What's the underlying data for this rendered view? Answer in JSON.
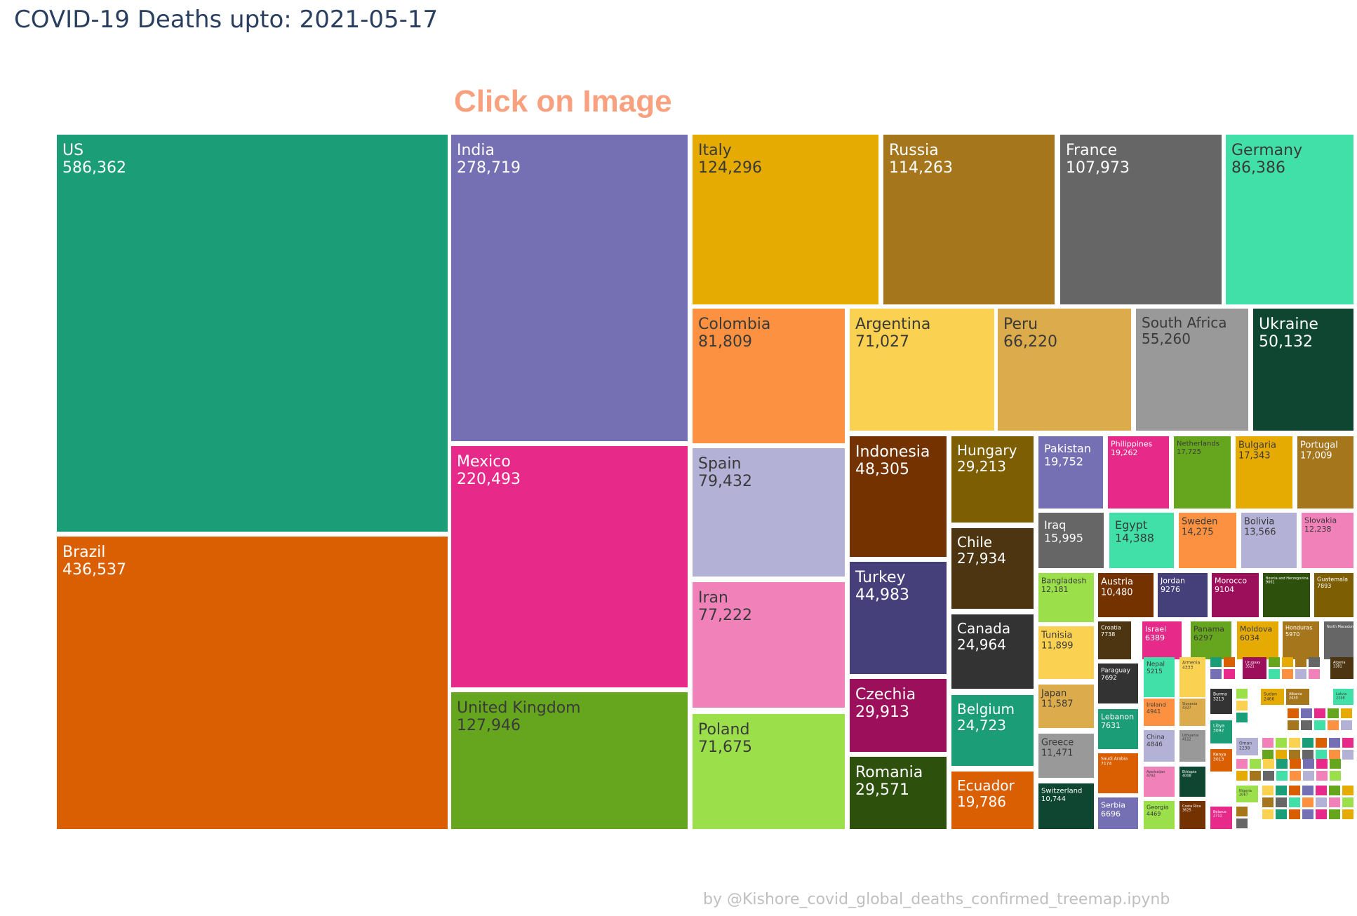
{
  "title": "COVID-19 Deaths upto: 2021-05-17",
  "annotation": "Click on Image",
  "credit": "by @Kishore_covid_global_deaths_confirmed_treemap.ipynb",
  "chart_data": {
    "type": "treemap",
    "title": "COVID-19 Deaths upto: 2021-05-17",
    "items": [
      {
        "name": "US",
        "value": 586362,
        "label": "586,362",
        "color": "#1b9e77",
        "text": "#ffffff"
      },
      {
        "name": "Brazil",
        "value": 436537,
        "label": "436,537",
        "color": "#d95f02",
        "text": "#ffffff"
      },
      {
        "name": "India",
        "value": 278719,
        "label": "278,719",
        "color": "#7570b3",
        "text": "#ffffff"
      },
      {
        "name": "Mexico",
        "value": 220493,
        "label": "220,493",
        "color": "#e7298a",
        "text": "#ffffff"
      },
      {
        "name": "United Kingdom",
        "value": 127946,
        "label": "127,946",
        "color": "#66a61e",
        "text": "#3a3a3a"
      },
      {
        "name": "Italy",
        "value": 124296,
        "label": "124,296",
        "color": "#e6ab02",
        "text": "#3a3a3a"
      },
      {
        "name": "Russia",
        "value": 114263,
        "label": "114,263",
        "color": "#a6761d",
        "text": "#ffffff"
      },
      {
        "name": "France",
        "value": 107973,
        "label": "107,973",
        "color": "#666666",
        "text": "#ffffff"
      },
      {
        "name": "Germany",
        "value": 86386,
        "label": "86,386",
        "color": "#41e0a9",
        "text": "#3a3a3a"
      },
      {
        "name": "Colombia",
        "value": 81809,
        "label": "81,809",
        "color": "#fc9241",
        "text": "#3a3a3a"
      },
      {
        "name": "Spain",
        "value": 79432,
        "label": "79,432",
        "color": "#b3b1d6",
        "text": "#3a3a3a"
      },
      {
        "name": "Iran",
        "value": 77222,
        "label": "77,222",
        "color": "#f082b9",
        "text": "#3a3a3a"
      },
      {
        "name": "Poland",
        "value": 71675,
        "label": "71,675",
        "color": "#9be04a",
        "text": "#3a3a3a"
      },
      {
        "name": "Argentina",
        "value": 71027,
        "label": "71,027",
        "color": "#fbd152",
        "text": "#3a3a3a"
      },
      {
        "name": "Peru",
        "value": 66220,
        "label": "66,220",
        "color": "#dcab4b",
        "text": "#3a3a3a"
      },
      {
        "name": "South Africa",
        "value": 55260,
        "label": "55,260",
        "color": "#999999",
        "text": "#3a3a3a"
      },
      {
        "name": "Ukraine",
        "value": 50132,
        "label": "50,132",
        "color": "#0e4632",
        "text": "#ffffff"
      },
      {
        "name": "Indonesia",
        "value": 48305,
        "label": "48,305",
        "color": "#743200",
        "text": "#ffffff"
      },
      {
        "name": "Turkey",
        "value": 44983,
        "label": "44,983",
        "color": "#45407a",
        "text": "#ffffff"
      },
      {
        "name": "Czechia",
        "value": 29913,
        "label": "29,913",
        "color": "#9c0f5b",
        "text": "#ffffff"
      },
      {
        "name": "Romania",
        "value": 29571,
        "label": "29,571",
        "color": "#2d500c",
        "text": "#ffffff"
      },
      {
        "name": "Hungary",
        "value": 29213,
        "label": "29,213",
        "color": "#7d5e02",
        "text": "#ffffff"
      },
      {
        "name": "Chile",
        "value": 27934,
        "label": "27,934",
        "color": "#4c3510",
        "text": "#ffffff"
      },
      {
        "name": "Canada",
        "value": 24964,
        "label": "24,964",
        "color": "#333333",
        "text": "#ffffff"
      },
      {
        "name": "Belgium",
        "value": 24723,
        "label": "24,723",
        "color": "#1b9e77",
        "text": "#ffffff"
      },
      {
        "name": "Ecuador",
        "value": 19786,
        "label": "19,786",
        "color": "#d95f02",
        "text": "#ffffff"
      },
      {
        "name": "Pakistan",
        "value": 19752,
        "label": "19,752",
        "color": "#7570b3",
        "text": "#ffffff"
      },
      {
        "name": "Philippines",
        "value": 19262,
        "label": "19,262",
        "color": "#e7298a",
        "text": "#ffffff"
      },
      {
        "name": "Netherlands",
        "value": 17725,
        "label": "17,725",
        "color": "#66a61e",
        "text": "#3a3a3a"
      },
      {
        "name": "Bulgaria",
        "value": 17343,
        "label": "17,343",
        "color": "#e6ab02",
        "text": "#3a3a3a"
      },
      {
        "name": "Portugal",
        "value": 17009,
        "label": "17,009",
        "color": "#a6761d",
        "text": "#ffffff"
      },
      {
        "name": "Iraq",
        "value": 15995,
        "label": "15,995",
        "color": "#666666",
        "text": "#ffffff"
      },
      {
        "name": "Egypt",
        "value": 14388,
        "label": "14,388",
        "color": "#41e0a9",
        "text": "#3a3a3a"
      },
      {
        "name": "Sweden",
        "value": 14275,
        "label": "14,275",
        "color": "#fc9241",
        "text": "#3a3a3a"
      },
      {
        "name": "Bolivia",
        "value": 13566,
        "label": "13,566",
        "color": "#b3b1d6",
        "text": "#3a3a3a"
      },
      {
        "name": "Slovakia",
        "value": 12238,
        "label": "12,238",
        "color": "#f082b9",
        "text": "#3a3a3a"
      },
      {
        "name": "Bangladesh",
        "value": 12181,
        "label": "12,181",
        "color": "#9be04a",
        "text": "#3a3a3a"
      },
      {
        "name": "Tunisia",
        "value": 11899,
        "label": "11,899",
        "color": "#fbd152",
        "text": "#3a3a3a"
      },
      {
        "name": "Japan",
        "value": 11587,
        "label": "11,587",
        "color": "#dcab4b",
        "text": "#3a3a3a"
      },
      {
        "name": "Greece",
        "value": 11471,
        "label": "11,471",
        "color": "#999999",
        "text": "#3a3a3a"
      },
      {
        "name": "Switzerland",
        "value": 10744,
        "label": "10,744",
        "color": "#0e4632",
        "text": "#ffffff"
      },
      {
        "name": "Austria",
        "value": 10480,
        "label": "10,480",
        "color": "#743200",
        "text": "#ffffff"
      },
      {
        "name": "Jordan",
        "value": 9276,
        "label": "9276",
        "color": "#45407a",
        "text": "#ffffff"
      },
      {
        "name": "Morocco",
        "value": 9104,
        "label": "9104",
        "color": "#9c0f5b",
        "text": "#ffffff"
      },
      {
        "name": "Bosnia and Herzegovina",
        "value": 9061,
        "label": "9061",
        "color": "#2d500c",
        "text": "#ffffff"
      },
      {
        "name": "Guatemala",
        "value": 7893,
        "label": "7893",
        "color": "#7d5e02",
        "text": "#ffffff"
      },
      {
        "name": "Croatia",
        "value": 7738,
        "label": "7738",
        "color": "#4c3510",
        "text": "#ffffff"
      },
      {
        "name": "Israel",
        "value": 6389,
        "label": "6389",
        "color": "#e7298a",
        "text": "#ffffff"
      },
      {
        "name": "Panama",
        "value": 6297,
        "label": "6297",
        "color": "#66a61e",
        "text": "#3a3a3a"
      },
      {
        "name": "Moldova",
        "value": 6034,
        "label": "6034",
        "color": "#e6ab02",
        "text": "#3a3a3a"
      },
      {
        "name": "Honduras",
        "value": 5970,
        "label": "5970",
        "color": "#a6761d",
        "text": "#ffffff"
      },
      {
        "name": "North Macedonia",
        "value": 5000,
        "label": "",
        "color": "#666666",
        "text": "#ffffff"
      },
      {
        "name": "Paraguay",
        "value": 7692,
        "label": "7692",
        "color": "#333333",
        "text": "#ffffff"
      },
      {
        "name": "Lebanon",
        "value": 7631,
        "label": "7631",
        "color": "#1b9e77",
        "text": "#ffffff"
      },
      {
        "name": "Saudi Arabia",
        "value": 7174,
        "label": "7174",
        "color": "#d95f02",
        "text": "#ffffff"
      },
      {
        "name": "Serbia",
        "value": 6696,
        "label": "6696",
        "color": "#7570b3",
        "text": "#ffffff"
      },
      {
        "name": "Nepal",
        "value": 5215,
        "label": "5215",
        "color": "#41e0a9",
        "text": "#3a3a3a"
      },
      {
        "name": "Armenia",
        "value": 4333,
        "label": "4333",
        "color": "#fbd152",
        "text": "#3a3a3a"
      },
      {
        "name": "Ireland",
        "value": 4941,
        "label": "4941",
        "color": "#fc9241",
        "text": "#3a3a3a"
      },
      {
        "name": "Slovenia",
        "value": 4327,
        "label": "4327",
        "color": "#dcab4b",
        "text": "#3a3a3a"
      },
      {
        "name": "China",
        "value": 4846,
        "label": "4846",
        "color": "#b3b1d6",
        "text": "#3a3a3a"
      },
      {
        "name": "Lithuania",
        "value": 4112,
        "label": "4112",
        "color": "#999999",
        "text": "#3a3a3a"
      },
      {
        "name": "Azerbaijan",
        "value": 4792,
        "label": "4792",
        "color": "#f082b9",
        "text": "#3a3a3a"
      },
      {
        "name": "Ethiopia",
        "value": 4008,
        "label": "4008",
        "color": "#0e4632",
        "text": "#ffffff"
      },
      {
        "name": "Georgia",
        "value": 4469,
        "label": "4469",
        "color": "#9be04a",
        "text": "#3a3a3a"
      },
      {
        "name": "Costa Rica",
        "value": 3625,
        "label": "3625",
        "color": "#743200",
        "text": "#ffffff"
      },
      {
        "name": "Uruguay",
        "value": 3521,
        "label": "3521",
        "color": "#9c0f5b",
        "text": "#ffffff"
      },
      {
        "name": "Algeria",
        "value": 3381,
        "label": "3381",
        "color": "#4c3510",
        "text": "#ffffff"
      },
      {
        "name": "Burma",
        "value": 3213,
        "label": "3213",
        "color": "#333333",
        "text": "#ffffff"
      },
      {
        "name": "Libya",
        "value": 3092,
        "label": "3092",
        "color": "#1b9e77",
        "text": "#ffffff"
      },
      {
        "name": "Kenya",
        "value": 3013,
        "label": "3013",
        "color": "#d95f02",
        "text": "#ffffff"
      },
      {
        "name": "Belarus",
        "value": 2711,
        "label": "2711",
        "color": "#e7298a",
        "text": "#ffffff"
      },
      {
        "name": "Sudan",
        "value": 2466,
        "label": "2466",
        "color": "#e6ab02",
        "text": "#3a3a3a"
      },
      {
        "name": "Albania",
        "value": 2430,
        "label": "2430",
        "color": "#a6761d",
        "text": "#ffffff"
      },
      {
        "name": "Latvia",
        "value": 2248,
        "label": "2248",
        "color": "#41e0a9",
        "text": "#3a3a3a"
      },
      {
        "name": "Oman",
        "value": 2238,
        "label": "2238",
        "color": "#b3b1d6",
        "text": "#3a3a3a"
      },
      {
        "name": "Nigeria",
        "value": 2067,
        "label": "2067",
        "color": "#9be04a",
        "text": "#3a3a3a"
      }
    ]
  }
}
